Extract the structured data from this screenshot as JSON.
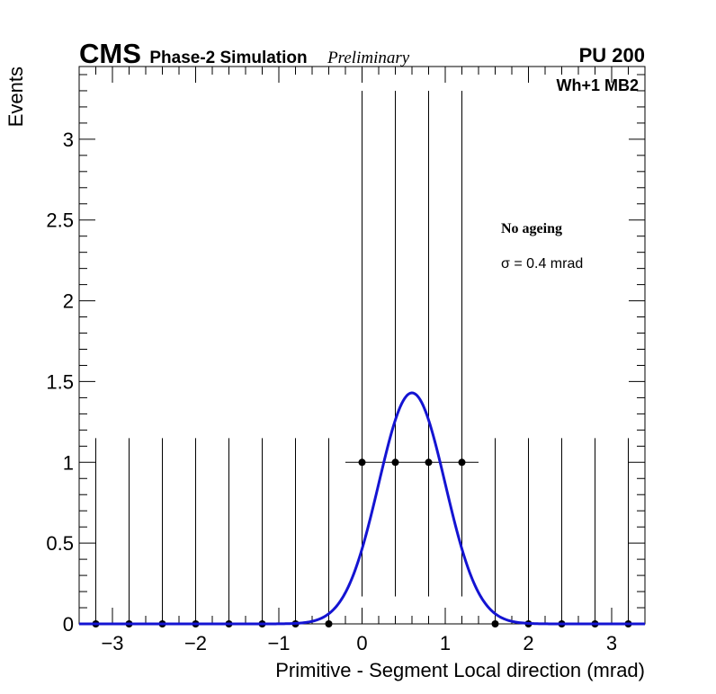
{
  "header": {
    "experiment": "CMS",
    "subtitle": "Phase-2 Simulation",
    "status": "Preliminary",
    "pileup": "PU 200",
    "region": "Wh+1 MB2"
  },
  "annotations": {
    "ageing": "No ageing",
    "sigma": "σ = 0.4 mrad"
  },
  "chart_data": {
    "type": "scatter",
    "xlabel": "Primitive - Segment Local direction (mrad)",
    "ylabel": "Events",
    "xlim": [
      -3.4,
      3.4
    ],
    "ylim": [
      0,
      3.45
    ],
    "x_ticks": [
      -3,
      -2,
      -1,
      0,
      1,
      2,
      3
    ],
    "x_tick_labels": [
      "−3",
      "−2",
      "−1",
      "0",
      "1",
      "2",
      "3"
    ],
    "y_ticks": [
      0,
      0.5,
      1,
      1.5,
      2,
      2.5,
      3
    ],
    "y_tick_labels": [
      "0",
      "0.5",
      "1",
      "1.5",
      "2",
      "2.5",
      "3"
    ],
    "grid": false,
    "series": [
      {
        "kind": "histogram-points",
        "color": "#000000",
        "bin_width": 0.4,
        "x": [
          -3.2,
          -2.8,
          -2.4,
          -2.0,
          -1.6,
          -1.2,
          -0.8,
          -0.4,
          0.0,
          0.4,
          0.8,
          1.2,
          1.6,
          2.0,
          2.4,
          2.8,
          3.2
        ],
        "y": [
          0,
          0,
          0,
          0,
          0,
          0,
          0,
          0,
          1,
          1,
          1,
          1,
          0,
          0,
          0,
          0,
          0
        ],
        "err_low": [
          0,
          0,
          0,
          0,
          0,
          0,
          0,
          0,
          0.83,
          0.83,
          0.83,
          0.83,
          0,
          0,
          0,
          0,
          0
        ],
        "err_high": [
          1.15,
          1.15,
          1.15,
          1.15,
          1.15,
          1.15,
          1.15,
          1.15,
          2.3,
          2.3,
          2.3,
          2.3,
          1.15,
          1.15,
          1.15,
          1.15,
          1.15
        ],
        "x_err_shown": [
          false,
          false,
          false,
          false,
          false,
          false,
          false,
          false,
          true,
          true,
          true,
          true,
          false,
          false,
          false,
          false,
          false
        ]
      },
      {
        "kind": "gaussian-fit",
        "color": "#1414d2",
        "amplitude": 1.43,
        "mean": 0.6,
        "sigma": 0.4
      }
    ]
  }
}
